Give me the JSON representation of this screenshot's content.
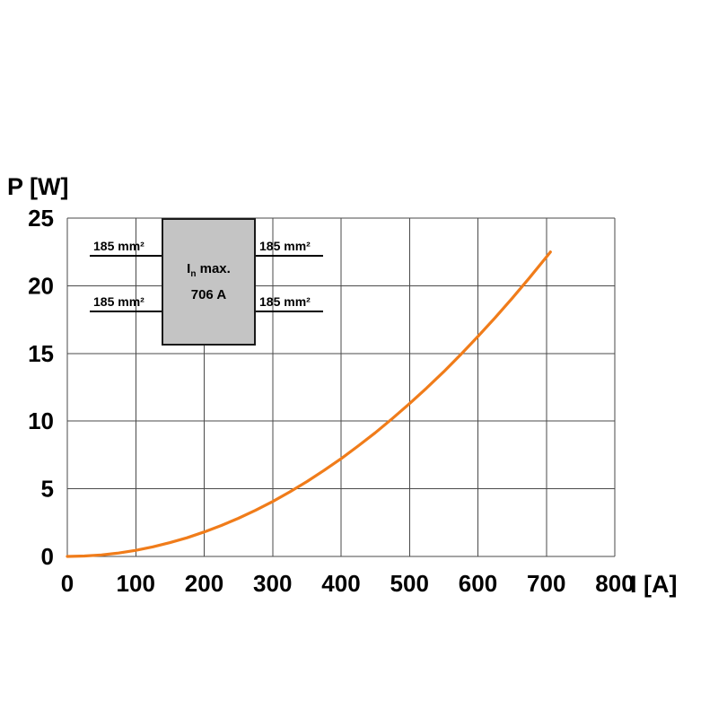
{
  "page": {
    "background": "#ffffff"
  },
  "chart_data": {
    "type": "line",
    "title": "",
    "xlabel": "I [A]",
    "ylabel": "P [W]",
    "xlim": [
      0,
      800
    ],
    "ylim": [
      0,
      25
    ],
    "x_ticks": [
      0,
      100,
      200,
      300,
      400,
      500,
      600,
      700,
      800
    ],
    "y_ticks": [
      0,
      5,
      10,
      15,
      20,
      25
    ],
    "grid": true,
    "grid_color": "#4a4a4a",
    "legend": "none",
    "series": [
      {
        "name": "power-loss-vs-current",
        "color": "#F07C1A",
        "x": [
          0,
          25,
          50,
          75,
          100,
          125,
          150,
          175,
          200,
          225,
          250,
          275,
          300,
          325,
          350,
          375,
          400,
          425,
          450,
          475,
          500,
          525,
          550,
          575,
          600,
          625,
          650,
          675,
          700,
          706
        ],
        "y": [
          0,
          0.03,
          0.11,
          0.25,
          0.45,
          0.71,
          1.02,
          1.38,
          1.81,
          2.29,
          2.82,
          3.41,
          4.06,
          4.77,
          5.53,
          6.35,
          7.22,
          8.16,
          9.14,
          10.19,
          11.29,
          12.44,
          13.65,
          14.92,
          16.25,
          17.63,
          19.07,
          20.57,
          22.12,
          22.5
        ]
      }
    ],
    "annotation": {
      "symbol": "I",
      "symbol_sub": "n",
      "symbol_suffix": " max.",
      "value": "706 A",
      "wire_labels": [
        "185 mm²",
        "185 mm²",
        "185 mm²",
        "185 mm²"
      ],
      "box_fill": "#c4c4c4"
    }
  }
}
